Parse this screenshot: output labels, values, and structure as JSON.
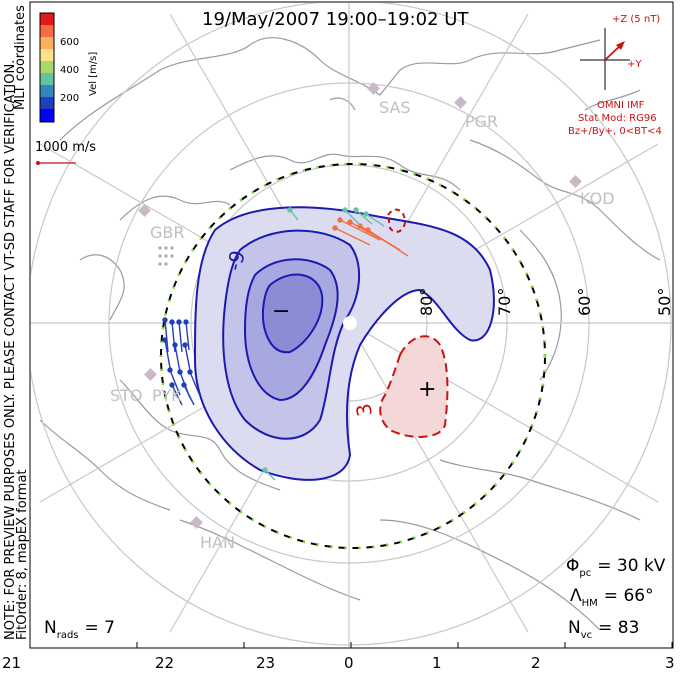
{
  "title": "19/May/2007 19:00–19:02 UT",
  "colorbar": {
    "ticks": [
      "600",
      "400",
      "200"
    ],
    "label": "Vel [m/s]",
    "colors": [
      "#e31a1c",
      "#f46d43",
      "#fdae61",
      "#fee08b",
      "#a6d96a",
      "#66c2a5",
      "#3288bd",
      "#1f3fbf",
      "#0000ff"
    ]
  },
  "coord_label": "MLT coordinates",
  "ref_vector_label": "1000 m/s",
  "side_note": "NOTE: FOR PREVIEW PURPOSES ONLY. PLEASE CONTACT VT-SD STAFF FOR VERIFICATION.",
  "fit_order": "FitOrder: 8, mapEX format",
  "imf": {
    "plus_z": "+Z (5 nT)",
    "plus_y": "+Y",
    "omni": "OMNI IMF",
    "stat_mod": "Stat Mod: RG96",
    "bz": "Bz+/By+, 0<BT<4"
  },
  "stations": [
    "SAS",
    "PGR",
    "KOD",
    "GBR",
    "STO",
    "PYK",
    "HAN"
  ],
  "lat_labels": [
    "80°",
    "70°",
    "60°",
    "50°"
  ],
  "contour_labels": {
    "minus_value": "-9",
    "plus_value": "3",
    "minus_sign": "−",
    "plus_sign": "+"
  },
  "stats": {
    "phi_pc": {
      "symbol": "Φ",
      "sub": "pc",
      "value": "= 30 kV"
    },
    "lambda_hm": {
      "symbol": "Λ",
      "sub": "HM",
      "value": "= 66°"
    },
    "n_vc": {
      "symbol": "N",
      "sub": "vc",
      "value": "= 83"
    },
    "n_rads": {
      "symbol": "N",
      "sub": "rads",
      "value": "= 7"
    }
  },
  "mlt_axis": [
    "21",
    "22",
    "23",
    "0",
    "1",
    "2",
    "3"
  ]
}
